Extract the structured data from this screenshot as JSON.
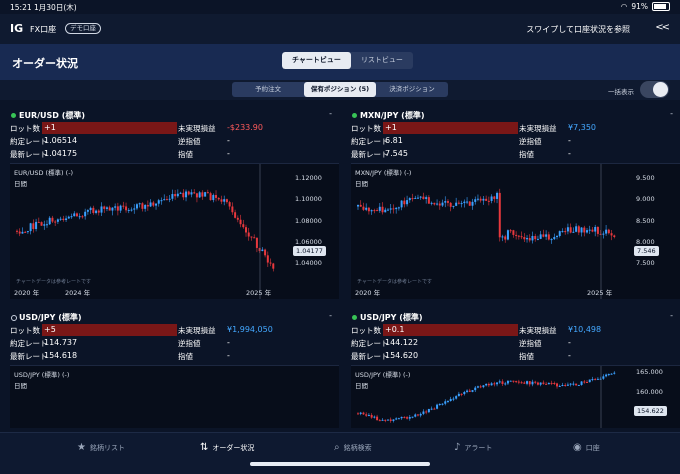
{
  "status": {
    "time": "15:21",
    "date": "1月30日(木)",
    "battery": "91%"
  },
  "app": {
    "logo": "IG",
    "title": "FX口座",
    "mode_badge": "デモ口座",
    "swipe_hint": "スワイプして口座状況を参照",
    "back_chevrons": "<<"
  },
  "page": {
    "title": "オーダー状況"
  },
  "view_tabs": [
    {
      "label": "チャートビュー",
      "active": true
    },
    {
      "label": "リストビュー",
      "active": false
    }
  ],
  "order_tabs": [
    {
      "label": "予約注文",
      "active": false
    },
    {
      "label": "保有ポジション (5)",
      "active": true
    },
    {
      "label": "決済ポジション",
      "active": false
    }
  ],
  "bulk_toggle": {
    "label": "一括表示",
    "on": false
  },
  "labels": {
    "lots": "ロット数",
    "open_rate": "約定レート",
    "latest_rate": "最新レート",
    "unrealized": "未実現損益",
    "stop": "逆指値",
    "limit": "指値",
    "day": "日間",
    "chart_note": "チャートデータは参考レートです"
  },
  "positions": [
    {
      "name": "EUR/USD (標準)",
      "status": "open",
      "lots": "+1",
      "open_rate": "1.06514",
      "latest_rate": "1.04175",
      "unrealized": "-$233.90",
      "unrealized_sign": "negative",
      "stop": "-",
      "limit": "-",
      "chart_title": "EUR/USD (標準) (-)",
      "y_ticks": [
        "1.12000",
        "1.10000",
        "1.08000",
        "1.06000",
        "1.04000"
      ],
      "x_ticks": [
        "2020 年",
        "2024 年",
        "2025 年"
      ],
      "current_price": "1.04177"
    },
    {
      "name": "MXN/JPY (標準)",
      "status": "open",
      "lots": "+1",
      "open_rate": "6.81",
      "latest_rate": "7.545",
      "unrealized": "¥7,350",
      "unrealized_sign": "positive",
      "stop": "-",
      "limit": "-",
      "chart_title": "MXN/JPY (標準) (-)",
      "y_ticks": [
        "9.500",
        "9.000",
        "8.500",
        "8.000",
        "7.500"
      ],
      "x_ticks": [
        "2020 年",
        "2025 年"
      ],
      "current_price": "7.546"
    },
    {
      "name": "USD/JPY (標準)",
      "status": "pending",
      "lots": "+5",
      "open_rate": "114.737",
      "latest_rate": "154.618",
      "unrealized": "¥1,994,050",
      "unrealized_sign": "positive",
      "stop": "-",
      "limit": "-",
      "chart_title": "USD/JPY (標準) (-)",
      "y_ticks": [],
      "x_ticks": [],
      "current_price": ""
    },
    {
      "name": "USD/JPY (標準)",
      "status": "open",
      "lots": "+0.1",
      "open_rate": "144.122",
      "latest_rate": "154.620",
      "unrealized": "¥10,498",
      "unrealized_sign": "positive",
      "stop": "-",
      "limit": "-",
      "chart_title": "USD/JPY (標準) (-)",
      "y_ticks": [
        "165.000",
        "160.000",
        "155.000"
      ],
      "x_ticks": [],
      "current_price": "154.622"
    }
  ],
  "bottom_tabs": [
    {
      "label": "銘柄リスト",
      "icon": "star-icon",
      "active": false
    },
    {
      "label": "オーダー状況",
      "icon": "swap-arrows-icon",
      "active": true
    },
    {
      "label": "銘柄検索",
      "icon": "search-icon",
      "active": false
    },
    {
      "label": "アラート",
      "icon": "bell-icon",
      "active": false
    },
    {
      "label": "口座",
      "icon": "account-icon",
      "active": false
    }
  ],
  "colors": {
    "positive": "#44a8ff",
    "negative": "#ff5b5b",
    "lot_bar": "#7a1717",
    "candle_up": "#3aa0ff",
    "candle_down": "#e8383d"
  }
}
